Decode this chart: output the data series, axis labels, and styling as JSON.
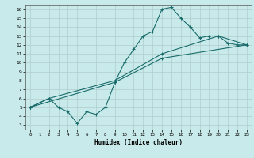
{
  "xlabel": "Humidex (Indice chaleur)",
  "bg_color": "#c8eaea",
  "grid_color": "#b0cccc",
  "line_color": "#1a6b6b",
  "xlim": [
    -0.5,
    23.5
  ],
  "ylim": [
    2.5,
    16.5
  ],
  "xticks": [
    0,
    1,
    2,
    3,
    4,
    5,
    6,
    7,
    8,
    9,
    10,
    11,
    12,
    13,
    14,
    15,
    16,
    17,
    18,
    19,
    20,
    21,
    22,
    23
  ],
  "yticks": [
    3,
    4,
    5,
    6,
    7,
    8,
    9,
    10,
    11,
    12,
    13,
    14,
    15,
    16
  ],
  "line1_x": [
    0,
    2,
    3,
    4,
    5,
    6,
    7,
    8,
    9,
    10,
    11,
    12,
    13,
    14,
    15,
    16,
    17,
    18,
    19,
    20,
    21,
    22,
    23
  ],
  "line1_y": [
    5,
    6,
    5,
    4.5,
    3.2,
    4.5,
    4.2,
    5.0,
    7.8,
    10.0,
    11.5,
    13.0,
    13.5,
    16.0,
    16.2,
    15.0,
    14.0,
    12.8,
    13.0,
    13.0,
    12.2,
    12.0,
    12.0
  ],
  "line2_x": [
    0,
    2,
    9,
    14,
    20,
    23
  ],
  "line2_y": [
    5,
    6,
    8.0,
    11.0,
    13.0,
    12.0
  ],
  "line3_x": [
    0,
    9,
    14,
    23
  ],
  "line3_y": [
    5,
    7.8,
    10.5,
    12.0
  ]
}
